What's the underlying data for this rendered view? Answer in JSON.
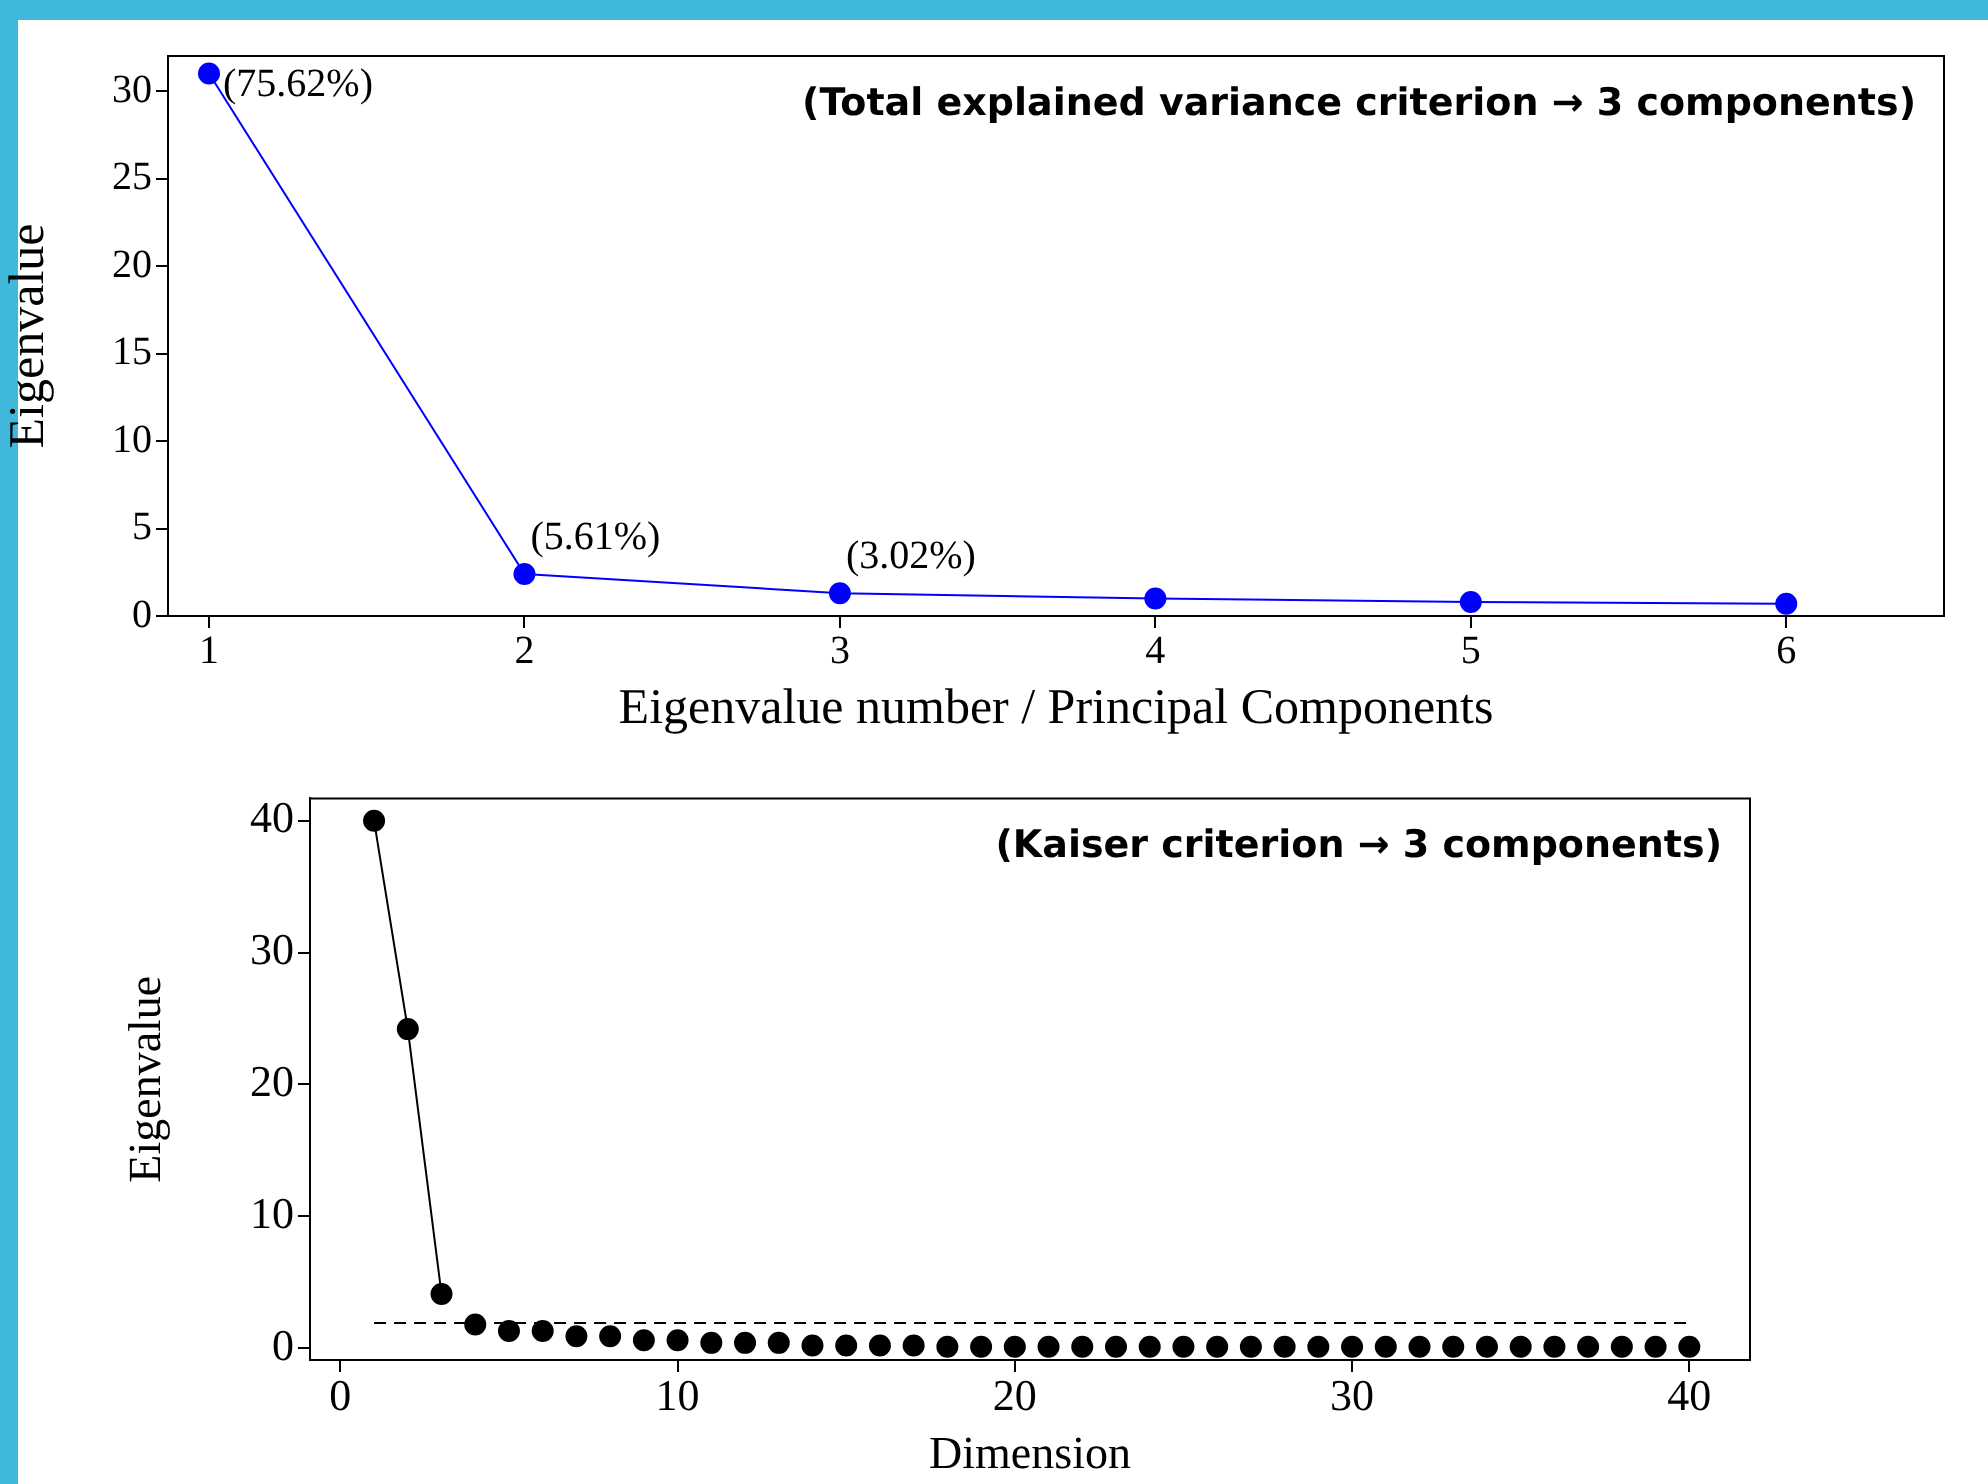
{
  "chart_data": [
    {
      "type": "line",
      "xlabel": "Eigenvalue number / Principal Components",
      "ylabel": "Eigenvalue",
      "annotations": [
        {
          "text": "(75.62%)",
          "x": 1,
          "y": 31.0
        },
        {
          "text": "(5.61%)",
          "x": 2,
          "y": 2.4
        },
        {
          "text": "(3.02%)",
          "x": 3,
          "y": 1.3
        },
        "(Total explained variance criterion → 3 components)"
      ],
      "xlim": [
        0.87,
        6.5
      ],
      "xticks": [
        1,
        2,
        3,
        4,
        5,
        6
      ],
      "ylim": [
        0,
        32
      ],
      "yticks": [
        0,
        5,
        10,
        15,
        20,
        25,
        30
      ],
      "grid": false,
      "legend": false,
      "marker": "circle",
      "line_style": "solid",
      "series": [
        {
          "color": "#0000ff",
          "x": [
            1,
            2,
            3,
            4,
            5,
            6
          ],
          "values": [
            31.0,
            2.4,
            1.3,
            1.0,
            0.8,
            0.7
          ]
        }
      ]
    },
    {
      "type": "scatter",
      "xlabel": "Dimension",
      "ylabel": "Eigenvalue",
      "annotations": [
        "(Kaiser criterion → 3 components)"
      ],
      "xlim": [
        -0.9,
        41.8
      ],
      "xticks": [
        0,
        10,
        20,
        30,
        40
      ],
      "ylim": [
        -0.9,
        41.7
      ],
      "yticks": [
        0,
        10,
        20,
        30,
        40
      ],
      "grid": false,
      "legend": false,
      "marker": "circle",
      "ref_lines": [
        {
          "axis": "y",
          "value": 1.9,
          "label": null,
          "color": "#000000",
          "line_style": "dashed"
        }
      ],
      "series": [
        {
          "type": "line",
          "color": "#000000",
          "x": [
            1,
            2,
            3
          ],
          "values": [
            40,
            24.2,
            4.1
          ]
        },
        {
          "color": "#000000",
          "x": [
            4,
            5,
            6,
            7,
            8,
            9,
            10,
            11,
            12,
            13,
            14,
            15,
            16,
            17,
            18,
            19,
            20,
            21,
            22,
            23,
            24,
            25,
            26,
            27,
            28,
            29,
            30,
            31,
            32,
            33,
            34,
            35,
            36,
            37,
            38,
            39,
            40
          ],
          "values": [
            1.8,
            1.3,
            1.3,
            0.9,
            0.9,
            0.6,
            0.6,
            0.4,
            0.4,
            0.4,
            0.2,
            0.2,
            0.2,
            0.2,
            0.1,
            0.1,
            0.1,
            0.1,
            0.1,
            0.1,
            0.1,
            0.1,
            0.1,
            0.1,
            0.1,
            0.1,
            0.1,
            0.1,
            0.1,
            0.1,
            0.1,
            0.1,
            0.1,
            0.1,
            0.1,
            0.1,
            0.1
          ]
        }
      ]
    }
  ]
}
